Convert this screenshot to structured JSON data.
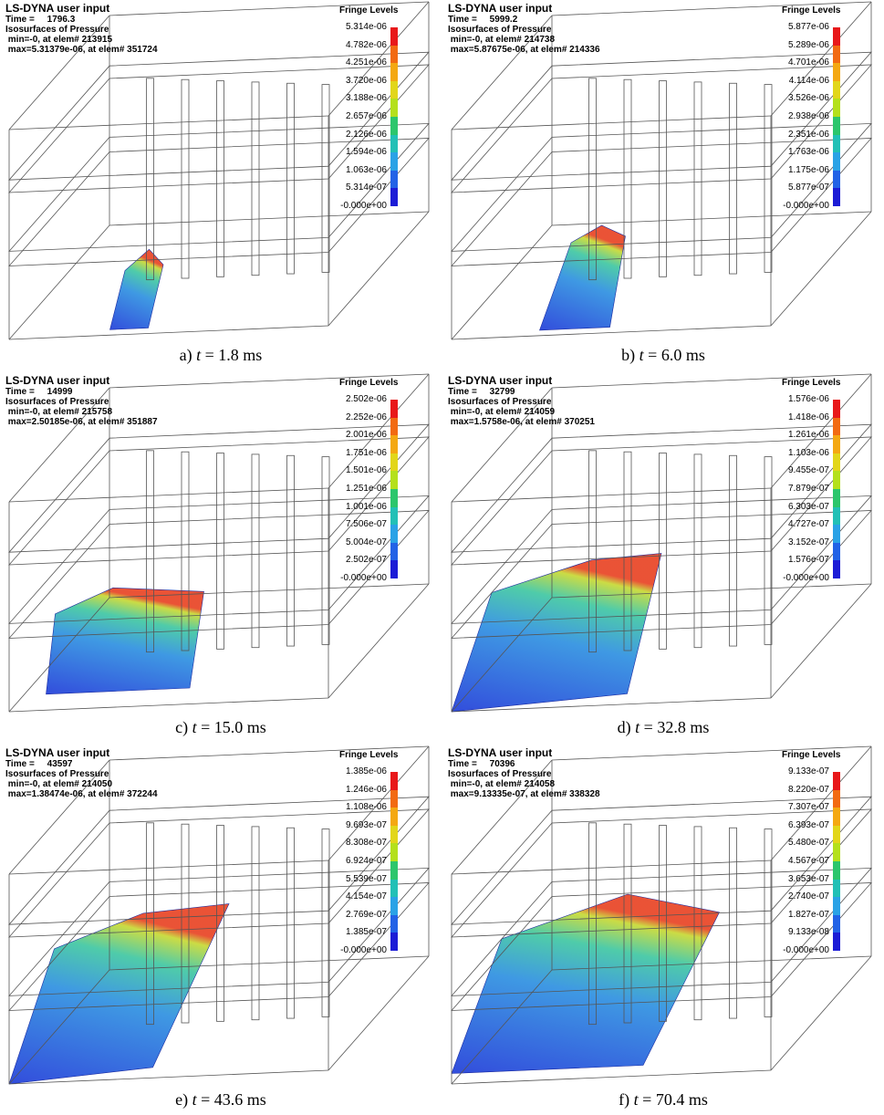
{
  "panels": [
    {
      "header": [
        "LS-DYNA user input",
        "Time =     1796.3",
        "Isosurfaces of Pressure",
        " min=-0, at elem# 213915",
        " max=5.31379e-06, at elem# 351724"
      ],
      "legend_title": "Fringe Levels",
      "levels": [
        "5.314e-06",
        "4.782e-06",
        "4.251e-06",
        "3.720e-06",
        "3.188e-06",
        "2.657e-06",
        "2.126e-06",
        "1.594e-06",
        "1.063e-06",
        "5.314e-07",
        "-0.000e+00"
      ],
      "caption": {
        "label": "a)",
        "symbol": "t",
        "text": "= 1.8 ms"
      }
    },
    {
      "header": [
        "LS-DYNA user input",
        "Time =     5999.2",
        "Isosurfaces of Pressure",
        " min=-0, at elem# 214738",
        " max=5.87675e-06, at elem# 214336"
      ],
      "legend_title": "Fringe Levels",
      "levels": [
        "5.877e-06",
        "5.289e-06",
        "4.701e-06",
        "4.114e-06",
        "3.526e-06",
        "2.938e-06",
        "2.351e-06",
        "1.763e-06",
        "1.175e-06",
        "5.877e-07",
        "-0.000e+00"
      ],
      "caption": {
        "label": "b)",
        "symbol": "t",
        "text": "= 6.0 ms"
      }
    },
    {
      "header": [
        "LS-DYNA user input",
        "Time =     14999",
        "Isosurfaces of Pressure",
        " min=-0, at elem# 215758",
        " max=2.50185e-06, at elem# 351887"
      ],
      "legend_title": "Fringe Levels",
      "levels": [
        "2.502e-06",
        "2.252e-06",
        "2.001e-06",
        "1.751e-06",
        "1.501e-06",
        "1.251e-06",
        "1.001e-06",
        "7.506e-07",
        "5.004e-07",
        "2.502e-07",
        "-0.000e+00"
      ],
      "caption": {
        "label": "c)",
        "symbol": "t",
        "text": "= 15.0 ms"
      }
    },
    {
      "header": [
        "LS-DYNA user input",
        "Time =     32799",
        "Isosurfaces of Pressure",
        " min=-0, at elem# 214059",
        " max=1.5758e-06, at elem# 370251"
      ],
      "legend_title": "Fringe Levels",
      "levels": [
        "1.576e-06",
        "1.418e-06",
        "1.261e-06",
        "1.103e-06",
        "9.455e-07",
        "7.879e-07",
        "6.303e-07",
        "4.727e-07",
        "3.152e-07",
        "1.576e-07",
        "-0.000e+00"
      ],
      "caption": {
        "label": "d)",
        "symbol": "t",
        "text": "= 32.8 ms"
      }
    },
    {
      "header": [
        "LS-DYNA user input",
        "Time =     43597",
        "Isosurfaces of Pressure",
        " min=-0, at elem# 214050",
        " max=1.38474e-06, at elem# 372244"
      ],
      "legend_title": "Fringe Levels",
      "levels": [
        "1.385e-06",
        "1.246e-06",
        "1.108e-06",
        "9.693e-07",
        "8.308e-07",
        "6.924e-07",
        "5.539e-07",
        "4.154e-07",
        "2.769e-07",
        "1.385e-07",
        "-0.000e+00"
      ],
      "caption": {
        "label": "e)",
        "symbol": "t",
        "text": "= 43.6 ms"
      }
    },
    {
      "header": [
        "LS-DYNA user input",
        "Time =     70396",
        "Isosurfaces of Pressure",
        " min=-0, at elem# 214058",
        " max=9.13335e-07, at elem# 338328"
      ],
      "legend_title": "Fringe Levels",
      "levels": [
        "9.133e-07",
        "8.220e-07",
        "7.307e-07",
        "6.393e-07",
        "5.480e-07",
        "4.567e-07",
        "3.653e-07",
        "2.740e-07",
        "1.827e-07",
        "9.133e-08",
        "-0.000e+00"
      ],
      "caption": {
        "label": "f)",
        "symbol": "t",
        "text": "= 70.4 ms"
      }
    }
  ]
}
